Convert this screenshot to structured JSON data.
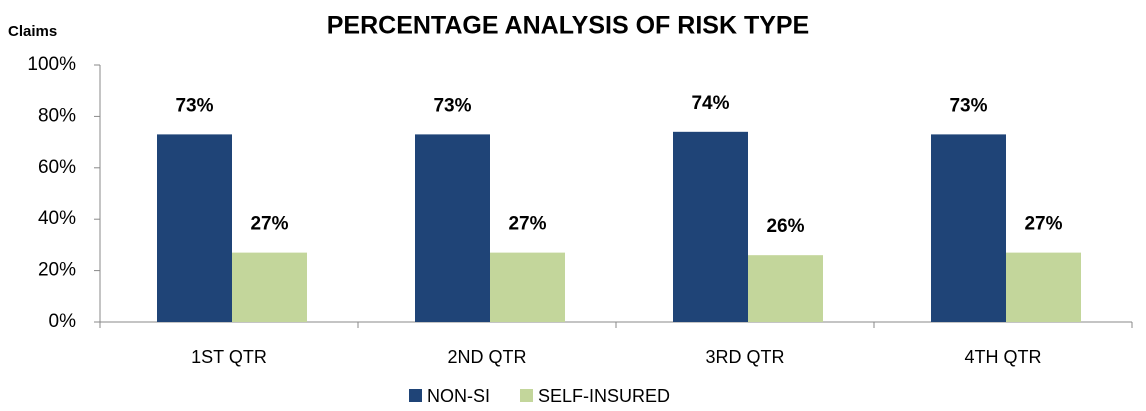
{
  "chart_data": {
    "type": "bar",
    "title": "PERCENTAGE ANALYSIS OF RISK TYPE",
    "y_label": "Claims",
    "categories": [
      "1ST QTR",
      "2ND QTR",
      "3RD QTR",
      "4TH QTR"
    ],
    "series": [
      {
        "name": "NON-SI",
        "color": "#1f4477",
        "values": [
          73,
          73,
          74,
          73
        ],
        "value_labels": [
          "73%",
          "73%",
          "74%",
          "73%"
        ]
      },
      {
        "name": "SELF-INSURED",
        "color": "#c3d69b",
        "values": [
          27,
          27,
          26,
          27
        ],
        "value_labels": [
          "27%",
          "27%",
          "26%",
          "27%"
        ]
      }
    ],
    "ylim": [
      0,
      100
    ],
    "yticks": [
      {
        "value": 0,
        "label": "0%"
      },
      {
        "value": 20,
        "label": "20%"
      },
      {
        "value": 40,
        "label": "40%"
      },
      {
        "value": 60,
        "label": "60%"
      },
      {
        "value": 80,
        "label": "80%"
      },
      {
        "value": 100,
        "label": "100%"
      }
    ],
    "legend": "bottom"
  }
}
